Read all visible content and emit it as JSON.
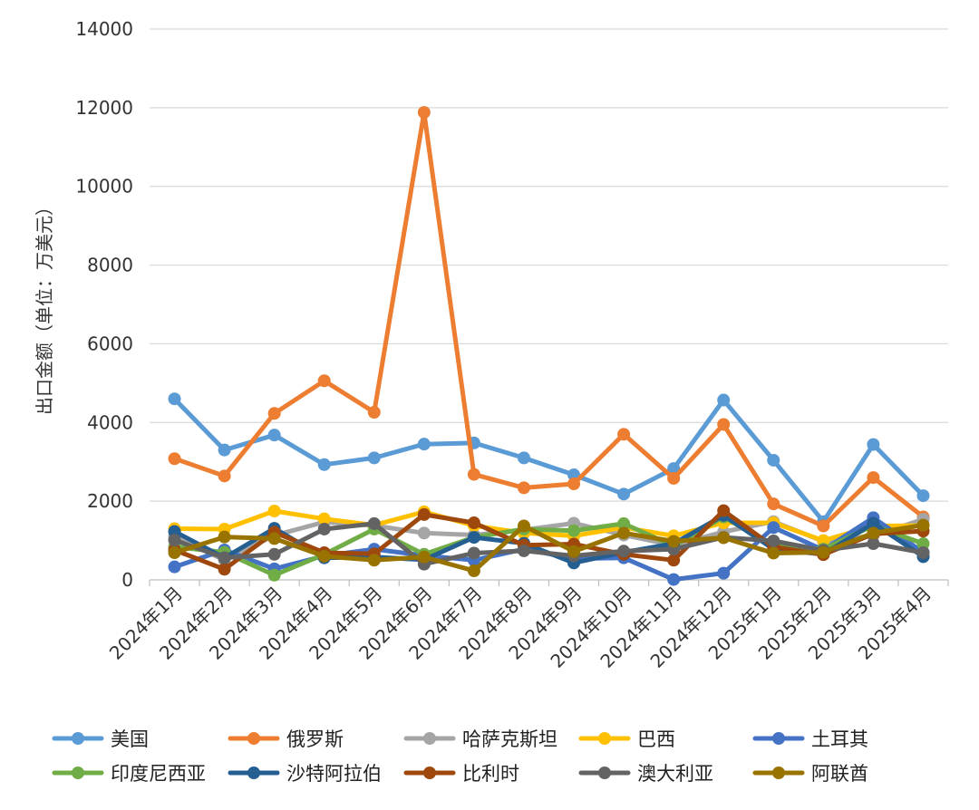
{
  "chart_data": {
    "type": "line",
    "ylabel": "出口金额（单位：万美元）",
    "ylim": [
      0,
      14000
    ],
    "yticks": [
      "0",
      "2000",
      "4000",
      "6000",
      "8000",
      "10000",
      "12000",
      "14000"
    ],
    "categories": [
      "2024年1月",
      "2024年2月",
      "2024年3月",
      "2024年4月",
      "2024年5月",
      "2024年6月",
      "2024年7月",
      "2024年8月",
      "2024年9月",
      "2024年10月",
      "2024年11月",
      "2024年12月",
      "2025年1月",
      "2025年2月",
      "2025年3月",
      "2025年4月"
    ],
    "grid": true,
    "legend_position": "bottom",
    "series": [
      {
        "name": "美国",
        "color": "#5b9bd5",
        "values": [
          4600,
          3300,
          3680,
          2930,
          3100,
          3450,
          3480,
          3100,
          2670,
          2180,
          2830,
          4570,
          3040,
          1480,
          3440,
          2140
        ]
      },
      {
        "name": "俄罗斯",
        "color": "#ed7d31",
        "values": [
          3080,
          2640,
          4230,
          5060,
          4260,
          11880,
          2680,
          2340,
          2440,
          3700,
          2580,
          3950,
          1930,
          1370,
          2600,
          1600
        ]
      },
      {
        "name": "哈萨克斯坦",
        "color": "#a5a5a5",
        "values": [
          1100,
          500,
          1130,
          1470,
          1380,
          1190,
          1140,
          1270,
          1440,
          1140,
          880,
          1220,
          1480,
          980,
          1120,
          1540
        ]
      },
      {
        "name": "巴西",
        "color": "#ffc000",
        "values": [
          1300,
          1290,
          1750,
          1550,
          1390,
          1730,
          1380,
          1190,
          1120,
          1330,
          1120,
          1450,
          1450,
          1000,
          1370,
          1380
        ]
      },
      {
        "name": "土耳其",
        "color": "#4472c4",
        "values": [
          330,
          760,
          280,
          610,
          780,
          620,
          500,
          780,
          540,
          560,
          10,
          170,
          1330,
          760,
          1580,
          700
        ]
      },
      {
        "name": "印度尼西亚",
        "color": "#70ad47",
        "values": [
          840,
          700,
          120,
          650,
          1290,
          650,
          1080,
          1290,
          1250,
          1430,
          860,
          1600,
          860,
          780,
          1380,
          920
        ]
      },
      {
        "name": "沙特阿拉伯",
        "color": "#255e91",
        "values": [
          1230,
          560,
          1310,
          560,
          580,
          510,
          1080,
          930,
          430,
          700,
          920,
          1640,
          780,
          650,
          1440,
          590
        ]
      },
      {
        "name": "比利时",
        "color": "#9e480e",
        "values": [
          760,
          270,
          1210,
          690,
          660,
          1660,
          1450,
          880,
          910,
          650,
          500,
          1760,
          840,
          640,
          1170,
          1240
        ]
      },
      {
        "name": "澳大利亚",
        "color": "#636363",
        "values": [
          1010,
          560,
          650,
          1290,
          1430,
          400,
          680,
          740,
          610,
          730,
          780,
          1080,
          990,
          750,
          920,
          690
        ]
      },
      {
        "name": "阿联酋",
        "color": "#997300",
        "values": [
          690,
          1090,
          1050,
          600,
          500,
          580,
          230,
          1370,
          720,
          1190,
          980,
          1070,
          680,
          700,
          1190,
          1390
        ]
      }
    ]
  }
}
